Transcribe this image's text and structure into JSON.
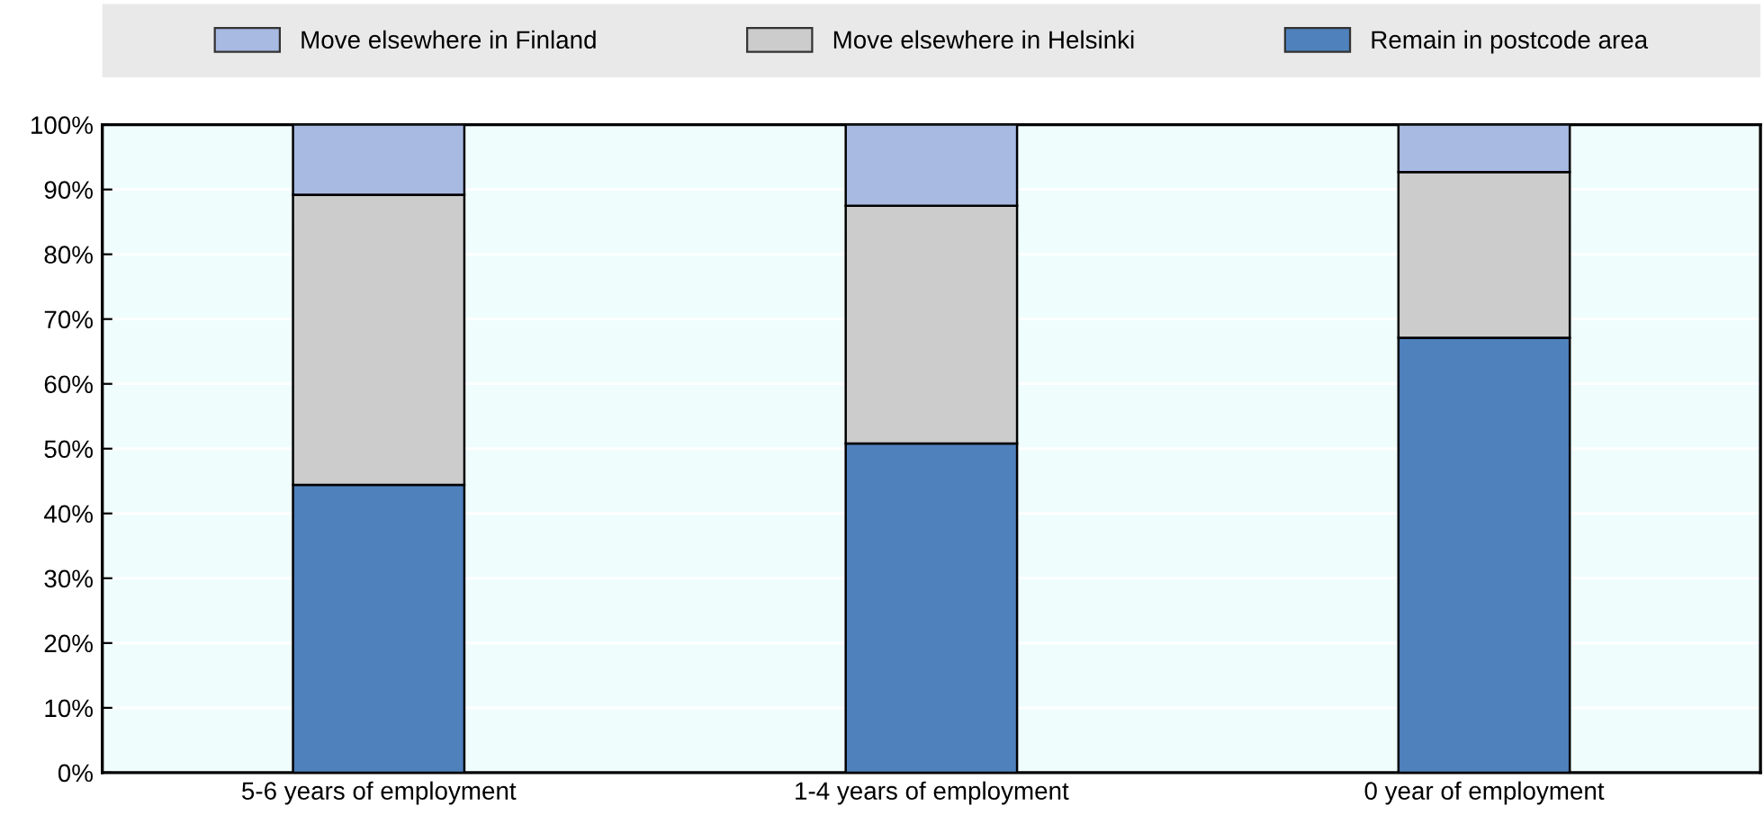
{
  "chart_data": {
    "type": "bar",
    "stacked": true,
    "categories": [
      "5-6 years of employment",
      "1-4 years of employment",
      "0 year of employment"
    ],
    "series": [
      {
        "name": "Remain in postcode area",
        "color": "#4f81bd",
        "values": [
          44.4,
          50.8,
          67.1
        ]
      },
      {
        "name": "Move elsewhere in Helsinki",
        "color": "#cccccc",
        "values": [
          44.8,
          36.7,
          25.6
        ]
      },
      {
        "name": "Move elsewhere in Finland",
        "color": "#a8b9e2",
        "values": [
          10.8,
          12.5,
          7.3
        ]
      }
    ],
    "ylim": [
      0,
      100
    ],
    "yticks": [
      {
        "value": 0,
        "label": "0%"
      },
      {
        "value": 10,
        "label": "10%"
      },
      {
        "value": 20,
        "label": "20%"
      },
      {
        "value": 30,
        "label": "30%"
      },
      {
        "value": 40,
        "label": "40%"
      },
      {
        "value": 50,
        "label": "50%"
      },
      {
        "value": 60,
        "label": "60%"
      },
      {
        "value": 70,
        "label": "70%"
      },
      {
        "value": 80,
        "label": "80%"
      },
      {
        "value": 90,
        "label": "90%"
      },
      {
        "value": 100,
        "label": "100%"
      }
    ],
    "grid": "y",
    "legend": "top"
  }
}
